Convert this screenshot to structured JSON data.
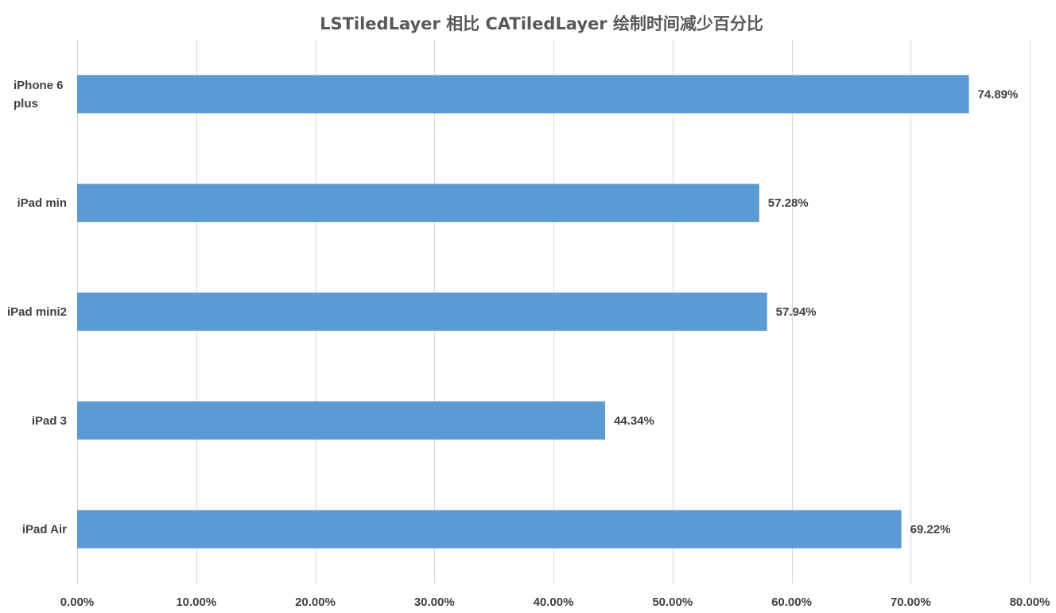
{
  "chart_data": {
    "type": "bar",
    "orientation": "horizontal",
    "title": "LSTiledLayer 相比 CATiledLayer 绘制时间减少百分比",
    "xlabel": "",
    "ylabel": "",
    "categories": [
      [
        "iPhone 6",
        "plus"
      ],
      [
        "iPad min"
      ],
      [
        "iPad mini2"
      ],
      [
        "iPad 3"
      ],
      [
        "iPad Air"
      ]
    ],
    "values": [
      74.89,
      57.28,
      57.94,
      44.34,
      69.22
    ],
    "value_labels": [
      "74.89%",
      "57.28%",
      "57.94%",
      "44.34%",
      "69.22%"
    ],
    "xlim": [
      0,
      80
    ],
    "ticks": [
      0,
      10,
      20,
      30,
      40,
      50,
      60,
      70,
      80
    ],
    "tick_labels": [
      "0.00%",
      "10.00%",
      "20.00%",
      "30.00%",
      "40.00%",
      "50.00%",
      "60.00%",
      "70.00%",
      "80.00%"
    ],
    "grid": true,
    "legend": "none",
    "bar_color": "#5b9bd5"
  }
}
